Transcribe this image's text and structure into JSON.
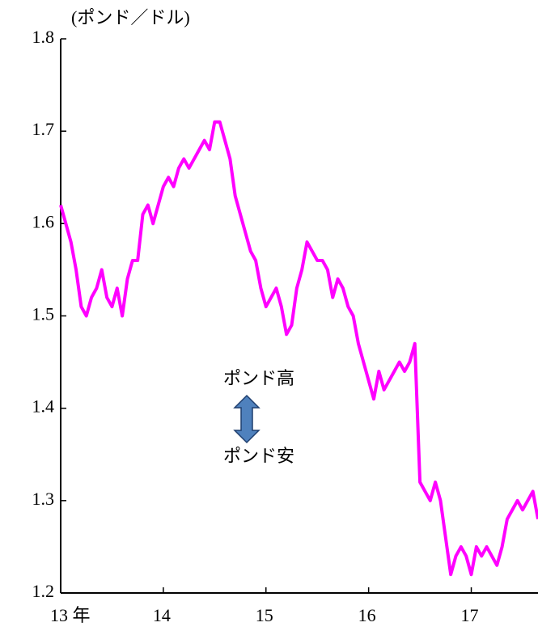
{
  "chart_data": {
    "type": "line",
    "y_axis_label": "(ポンド／ドル)",
    "annotations": [
      "ポンド高",
      "ポンド安"
    ],
    "xlim": [
      13,
      17.65
    ],
    "ylim": [
      1.2,
      1.8
    ],
    "xticks": [
      {
        "value": 13,
        "label": "13 年"
      },
      14,
      15,
      16,
      17
    ],
    "yticks": [
      1.2,
      1.3,
      1.4,
      1.5,
      1.6,
      1.7,
      1.8
    ],
    "series": [
      {
        "color": "#ff00ff",
        "x": [
          13.0,
          13.05,
          13.1,
          13.15,
          13.2,
          13.25,
          13.3,
          13.35,
          13.4,
          13.45,
          13.5,
          13.55,
          13.6,
          13.65,
          13.7,
          13.75,
          13.8,
          13.85,
          13.9,
          13.95,
          14.0,
          14.05,
          14.1,
          14.15,
          14.2,
          14.25,
          14.3,
          14.35,
          14.4,
          14.45,
          14.5,
          14.55,
          14.6,
          14.65,
          14.7,
          14.75,
          14.8,
          14.85,
          14.9,
          14.95,
          15.0,
          15.05,
          15.1,
          15.15,
          15.2,
          15.25,
          15.3,
          15.35,
          15.4,
          15.45,
          15.5,
          15.55,
          15.6,
          15.65,
          15.7,
          15.75,
          15.8,
          15.85,
          15.9,
          15.95,
          16.0,
          16.05,
          16.1,
          16.15,
          16.2,
          16.25,
          16.3,
          16.35,
          16.4,
          16.45,
          16.48,
          16.5,
          16.55,
          16.6,
          16.65,
          16.7,
          16.75,
          16.8,
          16.85,
          16.9,
          16.95,
          17.0,
          17.05,
          17.1,
          17.15,
          17.2,
          17.25,
          17.3,
          17.35,
          17.4,
          17.45,
          17.5,
          17.55,
          17.6,
          17.65
        ],
        "values": [
          1.62,
          1.6,
          1.58,
          1.55,
          1.51,
          1.5,
          1.52,
          1.53,
          1.55,
          1.52,
          1.51,
          1.53,
          1.5,
          1.54,
          1.56,
          1.56,
          1.61,
          1.62,
          1.6,
          1.62,
          1.64,
          1.65,
          1.64,
          1.66,
          1.67,
          1.66,
          1.67,
          1.68,
          1.69,
          1.68,
          1.71,
          1.71,
          1.69,
          1.67,
          1.63,
          1.61,
          1.59,
          1.57,
          1.56,
          1.53,
          1.51,
          1.52,
          1.53,
          1.51,
          1.48,
          1.49,
          1.53,
          1.55,
          1.58,
          1.57,
          1.56,
          1.56,
          1.55,
          1.52,
          1.54,
          1.53,
          1.51,
          1.5,
          1.47,
          1.45,
          1.43,
          1.41,
          1.44,
          1.42,
          1.43,
          1.44,
          1.45,
          1.44,
          1.45,
          1.47,
          1.38,
          1.32,
          1.31,
          1.3,
          1.32,
          1.3,
          1.26,
          1.22,
          1.24,
          1.25,
          1.24,
          1.22,
          1.25,
          1.24,
          1.25,
          1.24,
          1.23,
          1.25,
          1.28,
          1.29,
          1.3,
          1.29,
          1.3,
          1.31,
          1.28
        ]
      }
    ]
  }
}
